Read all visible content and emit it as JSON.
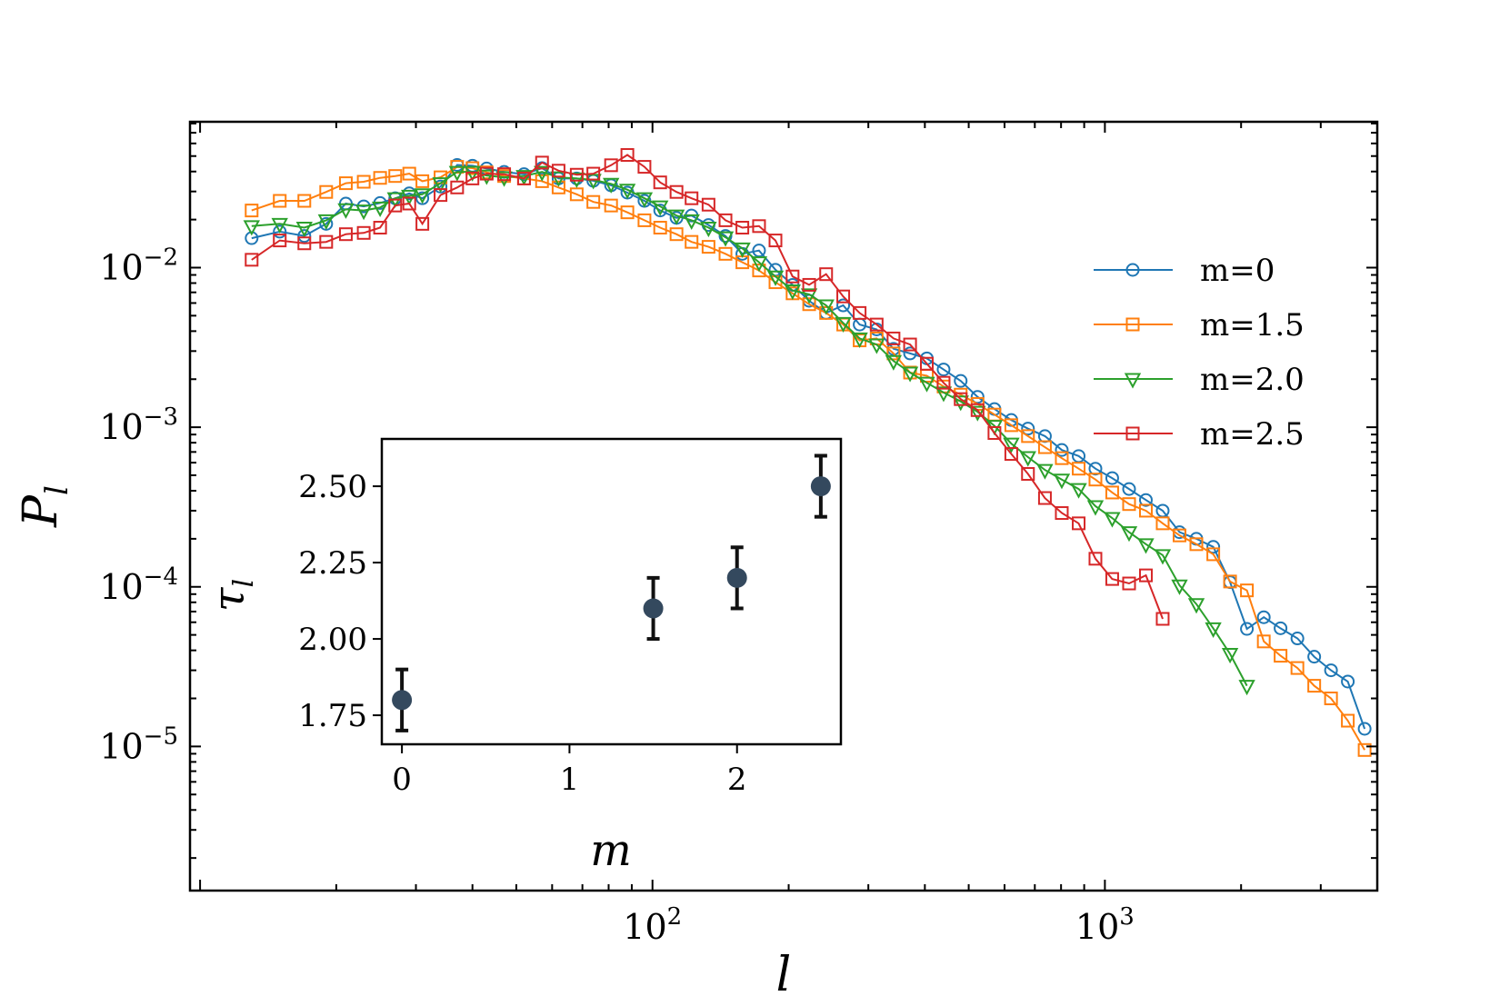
{
  "chart_data": [
    {
      "type": "line",
      "scale": "log-log",
      "title": "",
      "xlabel": "l",
      "ylabel": "P",
      "ylabel_sub": "l",
      "xlim": [
        9.5,
        4000
      ],
      "ylim": [
        1.25e-06,
        0.082
      ],
      "x_ticks": [
        {
          "value": 100,
          "base": "10",
          "exp": "2"
        },
        {
          "value": 1000,
          "base": "10",
          "exp": "3"
        }
      ],
      "y_ticks": [
        {
          "value": 0.01,
          "base": "10",
          "exp": "−2"
        },
        {
          "value": 0.001,
          "base": "10",
          "exp": "−3"
        },
        {
          "value": 0.0001,
          "base": "10",
          "exp": "−4"
        },
        {
          "value": 1e-05,
          "base": "10",
          "exp": "−5"
        }
      ],
      "legend": "right",
      "series": [
        {
          "name": "m=0",
          "color": "#1f77b4",
          "marker": "circle",
          "x": [
            13,
            15,
            17,
            19,
            21,
            23,
            25,
            27,
            29,
            31,
            34,
            37,
            40,
            43,
            47,
            52,
            57,
            62,
            68,
            74,
            81,
            88,
            96,
            104,
            113,
            122,
            133,
            145,
            158,
            172,
            187,
            204,
            222,
            242,
            264,
            287,
            313,
            341,
            371,
            404,
            440,
            480,
            523,
            570,
            621,
            676,
            737,
            803,
            875,
            953,
            1038,
            1131,
            1232,
            1342,
            1462,
            1593,
            1736,
            1891,
            2060,
            2245,
            2445,
            2664,
            2902,
            3161,
            3443,
            3751
          ],
          "y": [
            0.0153,
            0.0168,
            0.0158,
            0.0188,
            0.0252,
            0.0242,
            0.0254,
            0.0272,
            0.0292,
            0.0272,
            0.0322,
            0.044,
            0.0435,
            0.0418,
            0.0398,
            0.0385,
            0.042,
            0.0362,
            0.0362,
            0.035,
            0.0328,
            0.0295,
            0.0262,
            0.0228,
            0.0205,
            0.0212,
            0.0185,
            0.0158,
            0.0122,
            0.0128,
            0.0097,
            0.0078,
            0.0062,
            0.0052,
            0.0058,
            0.0044,
            0.0041,
            0.0031,
            0.0029,
            0.0027,
            0.0023,
            0.00195,
            0.00155,
            0.0013,
            0.00111,
            0.00098,
            0.00088,
            0.00072,
            0.00066,
            0.00055,
            0.00048,
            0.00041,
            0.00035,
            0.0003,
            0.00022,
            0.0002,
            0.000178,
            0.000107,
            5.45e-05,
            6.45e-05,
            5.5e-05,
            4.75e-05,
            3.65e-05,
            3e-05,
            2.55e-05,
            1.29e-05
          ]
        },
        {
          "name": "m=1.5",
          "color": "#ff7f0e",
          "marker": "square",
          "x": [
            13,
            15,
            17,
            19,
            21,
            23,
            25,
            27,
            29,
            31,
            34,
            37,
            40,
            43,
            47,
            52,
            57,
            62,
            68,
            74,
            81,
            88,
            96,
            104,
            113,
            122,
            133,
            145,
            158,
            172,
            187,
            204,
            222,
            242,
            264,
            287,
            313,
            341,
            371,
            404,
            440,
            480,
            523,
            570,
            621,
            676,
            737,
            803,
            875,
            953,
            1038,
            1131,
            1232,
            1342,
            1462,
            1593,
            1736,
            1891,
            2060,
            2245,
            2445,
            2664,
            2902,
            3161,
            3443,
            3751
          ],
          "y": [
            0.0228,
            0.0262,
            0.0262,
            0.0298,
            0.0338,
            0.0345,
            0.0365,
            0.0375,
            0.0388,
            0.0348,
            0.0368,
            0.0428,
            0.042,
            0.0395,
            0.0375,
            0.0362,
            0.0348,
            0.0318,
            0.0288,
            0.0258,
            0.0245,
            0.0222,
            0.0198,
            0.0178,
            0.0162,
            0.0145,
            0.0135,
            0.0122,
            0.0108,
            0.0096,
            0.0081,
            0.0069,
            0.0059,
            0.0052,
            0.0044,
            0.0035,
            0.0036,
            0.0029,
            0.0022,
            0.0021,
            0.0018,
            0.0016,
            0.0014,
            0.0012,
            0.00103,
            0.00088,
            0.00075,
            0.00064,
            0.00055,
            0.00047,
            0.00039,
            0.00033,
            0.0003,
            0.00025,
            0.00021,
            0.000185,
            0.00016,
            0.000108,
            9.5e-05,
            4.55e-05,
            3.7e-05,
            3.1e-05,
            2.4e-05,
            2e-05,
            1.45e-05,
            9.5e-06
          ]
        },
        {
          "name": "m=2.0",
          "color": "#2ca02c",
          "marker": "triangle-down",
          "x": [
            13,
            15,
            17,
            19,
            21,
            23,
            25,
            27,
            29,
            31,
            34,
            37,
            40,
            43,
            47,
            52,
            57,
            62,
            68,
            74,
            81,
            88,
            96,
            104,
            113,
            122,
            133,
            145,
            158,
            172,
            187,
            204,
            222,
            242,
            264,
            287,
            313,
            341,
            371,
            404,
            440,
            480,
            523,
            570,
            621,
            676,
            737,
            803,
            875,
            953,
            1038,
            1131,
            1232,
            1342,
            1462,
            1593,
            1736,
            1891,
            2060
          ],
          "y": [
            0.0182,
            0.0188,
            0.0178,
            0.0198,
            0.0232,
            0.0228,
            0.0238,
            0.0272,
            0.0282,
            0.0288,
            0.0338,
            0.0398,
            0.0398,
            0.0378,
            0.0368,
            0.0375,
            0.0398,
            0.0368,
            0.0362,
            0.0355,
            0.0335,
            0.0308,
            0.0272,
            0.0242,
            0.0212,
            0.0198,
            0.0178,
            0.0155,
            0.0132,
            0.0108,
            0.0088,
            0.0072,
            0.0068,
            0.0058,
            0.0045,
            0.0036,
            0.0033,
            0.0026,
            0.0022,
            0.0019,
            0.00165,
            0.00145,
            0.00125,
            0.00102,
            0.00079,
            0.00065,
            0.00054,
            0.00047,
            0.00041,
            0.00032,
            0.00027,
            0.00022,
            0.000185,
            0.000158,
            0.000102,
            7.8e-05,
            5.5e-05,
            3.8e-05,
            2.4e-05
          ]
        },
        {
          "name": "m=2.5",
          "color": "#d62728",
          "marker": "square",
          "x": [
            13,
            15,
            17,
            19,
            21,
            23,
            25,
            27,
            29,
            31,
            34,
            37,
            40,
            43,
            47,
            52,
            57,
            62,
            68,
            74,
            81,
            88,
            96,
            104,
            113,
            122,
            133,
            145,
            158,
            172,
            187,
            204,
            222,
            242,
            264,
            287,
            313,
            341,
            371,
            404,
            440,
            480,
            523,
            570,
            621,
            676,
            737,
            803,
            875,
            953,
            1038,
            1131,
            1232,
            1342
          ],
          "y": [
            0.0112,
            0.0148,
            0.0142,
            0.0145,
            0.0162,
            0.0165,
            0.0178,
            0.0245,
            0.0252,
            0.0188,
            0.0285,
            0.0318,
            0.0362,
            0.0388,
            0.0385,
            0.0362,
            0.0455,
            0.0405,
            0.0382,
            0.0388,
            0.0438,
            0.0508,
            0.0428,
            0.0342,
            0.0298,
            0.0272,
            0.0248,
            0.0198,
            0.0178,
            0.0182,
            0.0148,
            0.0088,
            0.0078,
            0.0091,
            0.0066,
            0.0052,
            0.0044,
            0.0036,
            0.0033,
            0.0025,
            0.0019,
            0.0015,
            0.00128,
            0.00092,
            0.00068,
            0.00051,
            0.00036,
            0.00029,
            0.00025,
            0.00015,
            0.000112,
            0.000105,
            0.000118,
            6.3e-05
          ]
        }
      ]
    },
    {
      "type": "scatter",
      "title": "",
      "xlabel": "m",
      "ylabel": "τ",
      "ylabel_sub": "l",
      "xlim": [
        -0.12,
        2.62
      ],
      "ylim": [
        1.655,
        2.655
      ],
      "x_ticks": [
        "0",
        "1",
        "2"
      ],
      "y_ticks": [
        "1.75",
        "2.00",
        "2.25",
        "2.50"
      ],
      "points": [
        {
          "x": 0.0,
          "y": 1.8,
          "err": 0.1
        },
        {
          "x": 1.5,
          "y": 2.1,
          "err": 0.1
        },
        {
          "x": 2.0,
          "y": 2.2,
          "err": 0.1
        },
        {
          "x": 2.5,
          "y": 2.5,
          "err": 0.1
        }
      ],
      "point_color": "#34495e",
      "errorbar_color": "#111111"
    }
  ]
}
